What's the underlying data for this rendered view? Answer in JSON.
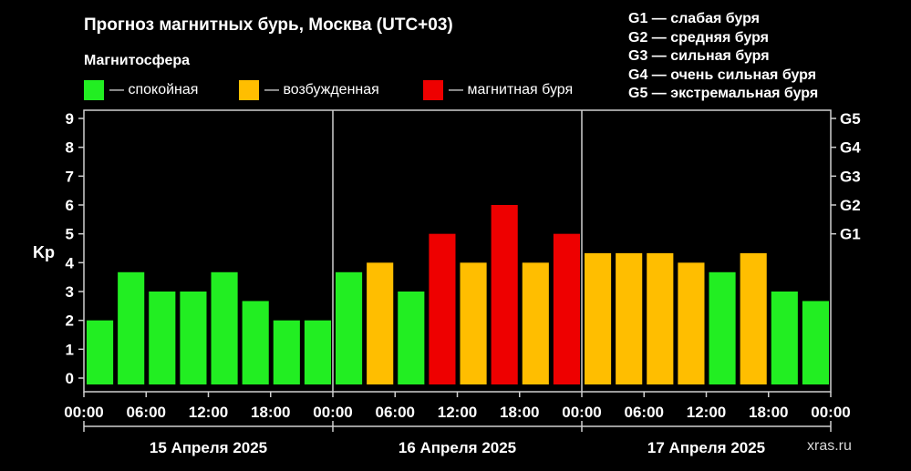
{
  "title": "Прогноз магнитных бурь, Москва (UTC+03)",
  "legend": {
    "heading": "Магнитосфера",
    "items": [
      {
        "label": "— спокойная",
        "color": "#22ee22"
      },
      {
        "label": "— возбужденная",
        "color": "#ffbe00"
      },
      {
        "label": "— магнитная буря",
        "color": "#ee0000"
      }
    ]
  },
  "g_scale": [
    "G1 — слабая буря",
    "G2 — средняя буря",
    "G3 — сильная буря",
    "G4 — очень сильная буря",
    "G5 — экстремальная буря"
  ],
  "watermark": "xras.ru",
  "chart_data": {
    "type": "bar",
    "ylabel": "Kp",
    "ylim": [
      0,
      9
    ],
    "yticks": [
      0,
      1,
      2,
      3,
      4,
      5,
      6,
      7,
      8,
      9
    ],
    "right_axis_labels": [
      {
        "value": 5,
        "label": "G1"
      },
      {
        "value": 6,
        "label": "G2"
      },
      {
        "value": 7,
        "label": "G3"
      },
      {
        "value": 8,
        "label": "G4"
      },
      {
        "value": 9,
        "label": "G5"
      }
    ],
    "xtick_labels": [
      "00:00",
      "06:00",
      "12:00",
      "18:00",
      "00:00",
      "06:00",
      "12:00",
      "18:00",
      "00:00",
      "06:00",
      "12:00",
      "18:00",
      "00:00"
    ],
    "days": [
      "15 Апреля 2025",
      "16 Апреля 2025",
      "17 Апреля 2025"
    ],
    "categories": [
      "15 00-03",
      "15 03-06",
      "15 06-09",
      "15 09-12",
      "15 12-15",
      "15 15-18",
      "15 18-21",
      "15 21-24",
      "16 00-03",
      "16 03-06",
      "16 06-09",
      "16 09-12",
      "16 12-15",
      "16 15-18",
      "16 18-21",
      "16 21-24",
      "17 00-03",
      "17 03-06",
      "17 06-09",
      "17 09-12",
      "17 12-15",
      "17 15-18",
      "17 18-21",
      "17 21-24"
    ],
    "values": [
      2.0,
      3.67,
      3.0,
      3.0,
      3.67,
      2.67,
      2.0,
      2.0,
      3.67,
      4.0,
      3.0,
      5.0,
      4.0,
      6.0,
      4.0,
      5.0,
      4.33,
      4.33,
      4.33,
      4.0,
      3.67,
      4.33,
      3.0,
      2.67
    ],
    "bar_colors": [
      "#22ee22",
      "#22ee22",
      "#22ee22",
      "#22ee22",
      "#22ee22",
      "#22ee22",
      "#22ee22",
      "#22ee22",
      "#22ee22",
      "#ffbe00",
      "#22ee22",
      "#ee0000",
      "#ffbe00",
      "#ee0000",
      "#ffbe00",
      "#ee0000",
      "#ffbe00",
      "#ffbe00",
      "#ffbe00",
      "#ffbe00",
      "#22ee22",
      "#ffbe00",
      "#22ee22",
      "#22ee22"
    ],
    "grid": false
  }
}
